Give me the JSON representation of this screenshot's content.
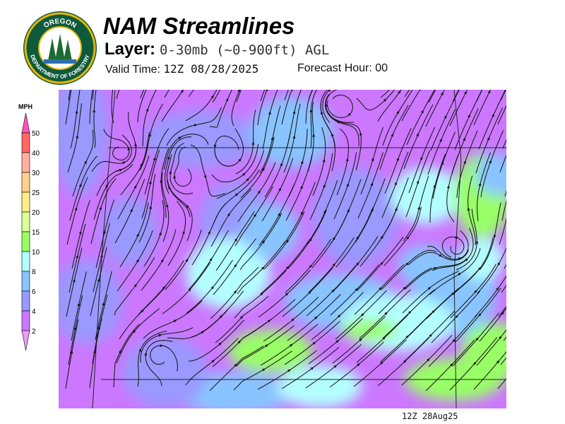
{
  "header": {
    "title": "NAM Streamlines",
    "layer_label": "Layer:",
    "layer_value": "0-30mb (~0-900ft) AGL",
    "valid_label": "Valid Time:",
    "valid_value": "12Z 08/28/2025",
    "forecast_label": "Forecast Hour:",
    "forecast_value": "00"
  },
  "logo": {
    "top_text": "OREGON",
    "bottom_text": "DEPARTMENT OF FORESTRY"
  },
  "legend": {
    "unit": "MPH",
    "levels": [
      {
        "label": "2",
        "color": "#cc77ff"
      },
      {
        "label": "4",
        "color": "#9999ff"
      },
      {
        "label": "6",
        "color": "#88c4ff"
      },
      {
        "label": "8",
        "color": "#b3ffff"
      },
      {
        "label": "10",
        "color": "#99ff66"
      },
      {
        "label": "15",
        "color": "#ddff99"
      },
      {
        "label": "20",
        "color": "#ffee88"
      },
      {
        "label": "25",
        "color": "#ffd08f"
      },
      {
        "label": "30",
        "color": "#ffb0a0"
      },
      {
        "label": "40",
        "color": "#ff6666"
      },
      {
        "label": "50",
        "color": "#ff55bb"
      }
    ],
    "below_color": "#ee99ff"
  },
  "footer": {
    "timestamp": "12Z 28Aug25"
  }
}
